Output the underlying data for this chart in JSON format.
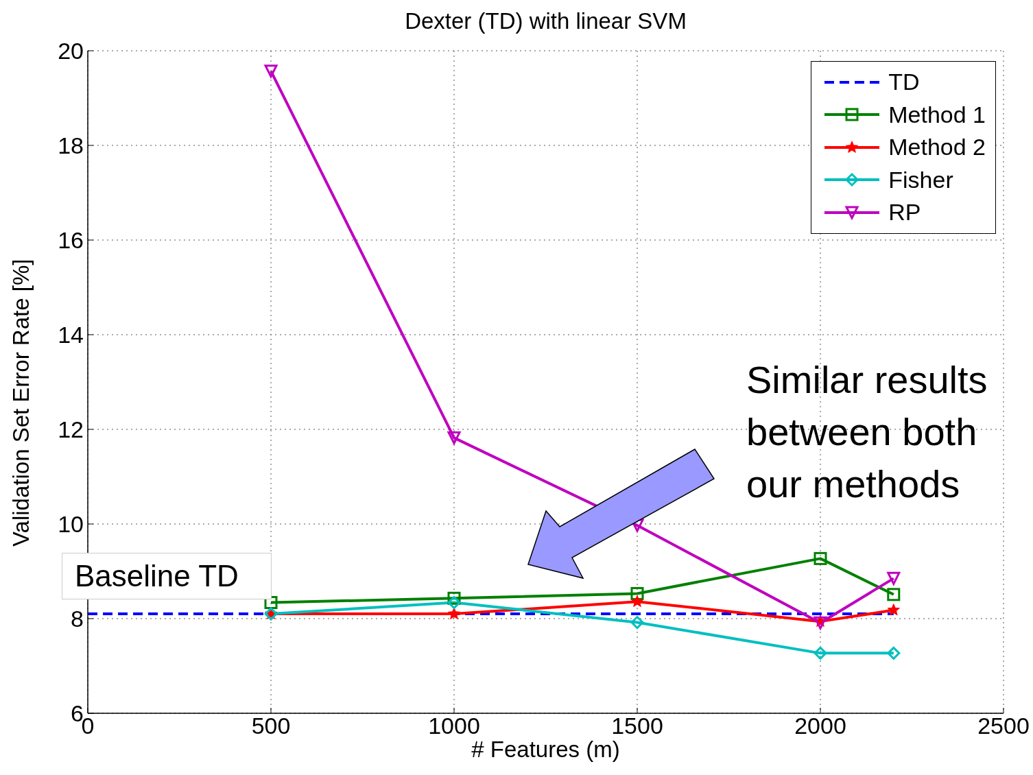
{
  "chart_data": {
    "type": "line",
    "title": "Dexter (TD) with linear SVM",
    "xlabel": "# Features (m)",
    "ylabel": "Validation Set Error Rate [%]",
    "xlim": [
      0,
      2500
    ],
    "xticks": [
      0,
      500,
      1000,
      1500,
      2000,
      2500
    ],
    "ylim": [
      6,
      20
    ],
    "yticks": [
      6,
      8,
      10,
      12,
      14,
      16,
      18,
      20
    ],
    "grid": true,
    "legend": "top right",
    "series": [
      {
        "name": "TD",
        "color": "#0000ff",
        "x": [
          0,
          2200
        ],
        "values": [
          8.1,
          8.1
        ],
        "line_style": "dashed",
        "marker": "none"
      },
      {
        "name": "Method 1",
        "color": "#008000",
        "x": [
          500,
          1000,
          1500,
          2000,
          2200
        ],
        "values": [
          8.34,
          8.43,
          8.53,
          9.27,
          8.51
        ],
        "line_style": "solid",
        "marker": "square"
      },
      {
        "name": "Method 2",
        "color": "#ff0000",
        "x": [
          500,
          1000,
          1500,
          2000,
          2200
        ],
        "values": [
          8.1,
          8.1,
          8.36,
          7.94,
          8.18
        ],
        "line_style": "solid",
        "marker": "star"
      },
      {
        "name": "Fisher",
        "color": "#00bfbf",
        "x": [
          500,
          1000,
          1500,
          2000,
          2200
        ],
        "values": [
          8.1,
          8.34,
          7.92,
          7.27,
          7.27
        ],
        "line_style": "solid",
        "marker": "diamond"
      },
      {
        "name": "RP",
        "color": "#bf00bf",
        "x": [
          500,
          1000,
          1500,
          2000,
          2200
        ],
        "values": [
          19.57,
          11.82,
          9.97,
          7.91,
          8.85
        ],
        "line_style": "solid",
        "marker": "triangle"
      }
    ],
    "annotations": [
      "Similar results between both our methods",
      "Baseline TD"
    ]
  }
}
